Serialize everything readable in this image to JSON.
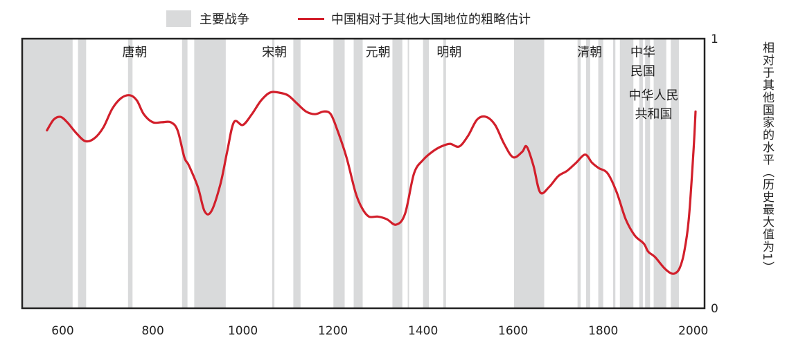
{
  "legend": {
    "wars_label": "主要战争",
    "line_label": "中国相对于其他大国地位的粗略估计"
  },
  "colors": {
    "war_band": "#d9dadb",
    "line": "#d21f2b",
    "frame": "#222222"
  },
  "chart_data": {
    "type": "line",
    "title": "",
    "xlabel": "",
    "ylabel": "相对于其他国家的水平（历史最大值为1）",
    "xlim": [
      510,
      2025
    ],
    "ylim": [
      0,
      1
    ],
    "xticks": [
      600,
      800,
      1000,
      1200,
      1400,
      1600,
      1800,
      2000
    ],
    "yticks": [
      0,
      1
    ],
    "grid": false,
    "legend_position": "top",
    "series": [
      {
        "name": "中国相对于其他大国地位的粗略估计",
        "x": [
          565,
          580,
          595,
          610,
          630,
          650,
          670,
          690,
          710,
          730,
          750,
          765,
          780,
          800,
          820,
          840,
          855,
          870,
          880,
          900,
          915,
          930,
          950,
          965,
          980,
          1000,
          1020,
          1040,
          1060,
          1080,
          1100,
          1120,
          1140,
          1160,
          1180,
          1195,
          1210,
          1230,
          1250,
          1265,
          1280,
          1300,
          1320,
          1340,
          1360,
          1380,
          1400,
          1420,
          1440,
          1460,
          1480,
          1500,
          1520,
          1540,
          1560,
          1580,
          1600,
          1620,
          1630,
          1645,
          1660,
          1680,
          1700,
          1720,
          1740,
          1760,
          1775,
          1790,
          1810,
          1830,
          1850,
          1870,
          1890,
          1900,
          1915,
          1935,
          1950,
          1960,
          1970,
          1980,
          1990,
          2000,
          2005
        ],
        "y": [
          0.66,
          0.7,
          0.71,
          0.69,
          0.65,
          0.62,
          0.63,
          0.67,
          0.74,
          0.78,
          0.79,
          0.77,
          0.72,
          0.69,
          0.69,
          0.69,
          0.66,
          0.56,
          0.53,
          0.45,
          0.36,
          0.36,
          0.46,
          0.58,
          0.69,
          0.68,
          0.72,
          0.77,
          0.8,
          0.8,
          0.79,
          0.76,
          0.73,
          0.72,
          0.73,
          0.72,
          0.66,
          0.56,
          0.43,
          0.37,
          0.34,
          0.34,
          0.33,
          0.31,
          0.35,
          0.5,
          0.55,
          0.58,
          0.6,
          0.61,
          0.6,
          0.64,
          0.7,
          0.71,
          0.68,
          0.61,
          0.56,
          0.58,
          0.6,
          0.53,
          0.43,
          0.45,
          0.49,
          0.51,
          0.54,
          0.57,
          0.54,
          0.52,
          0.5,
          0.43,
          0.33,
          0.27,
          0.24,
          0.21,
          0.19,
          0.15,
          0.13,
          0.13,
          0.15,
          0.21,
          0.33,
          0.57,
          0.73
        ]
      }
    ],
    "war_periods": [
      [
        510,
        622
      ],
      [
        634,
        652
      ],
      [
        745,
        755
      ],
      [
        865,
        877
      ],
      [
        892,
        962
      ],
      [
        1065,
        1070
      ],
      [
        1112,
        1128
      ],
      [
        1201,
        1226
      ],
      [
        1246,
        1266
      ],
      [
        1332,
        1354
      ],
      [
        1366,
        1369
      ],
      [
        1400,
        1413
      ],
      [
        1445,
        1451
      ],
      [
        1602,
        1669
      ],
      [
        1743,
        1750
      ],
      [
        1762,
        1771
      ],
      [
        1789,
        1800
      ],
      [
        1822,
        1827
      ],
      [
        1837,
        1867
      ],
      [
        1880,
        1888
      ],
      [
        1893,
        1904
      ],
      [
        1912,
        1940
      ],
      [
        1950,
        1968
      ]
    ],
    "annotations": [
      {
        "text": "唐朝",
        "x": 760,
        "y": 0.95
      },
      {
        "text": "宋朝",
        "x": 1070,
        "y": 0.95
      },
      {
        "text": "元朝",
        "x": 1300,
        "y": 0.95
      },
      {
        "text": "明朝",
        "x": 1458,
        "y": 0.95
      },
      {
        "text": "清朝",
        "x": 1770,
        "y": 0.95
      },
      {
        "text": "中华",
        "x": 1888,
        "y": 0.95
      },
      {
        "text": "民国",
        "x": 1888,
        "y": 0.88
      },
      {
        "text": "中华人民",
        "x": 1912,
        "y": 0.79
      },
      {
        "text": "共和国",
        "x": 1912,
        "y": 0.72
      }
    ]
  }
}
